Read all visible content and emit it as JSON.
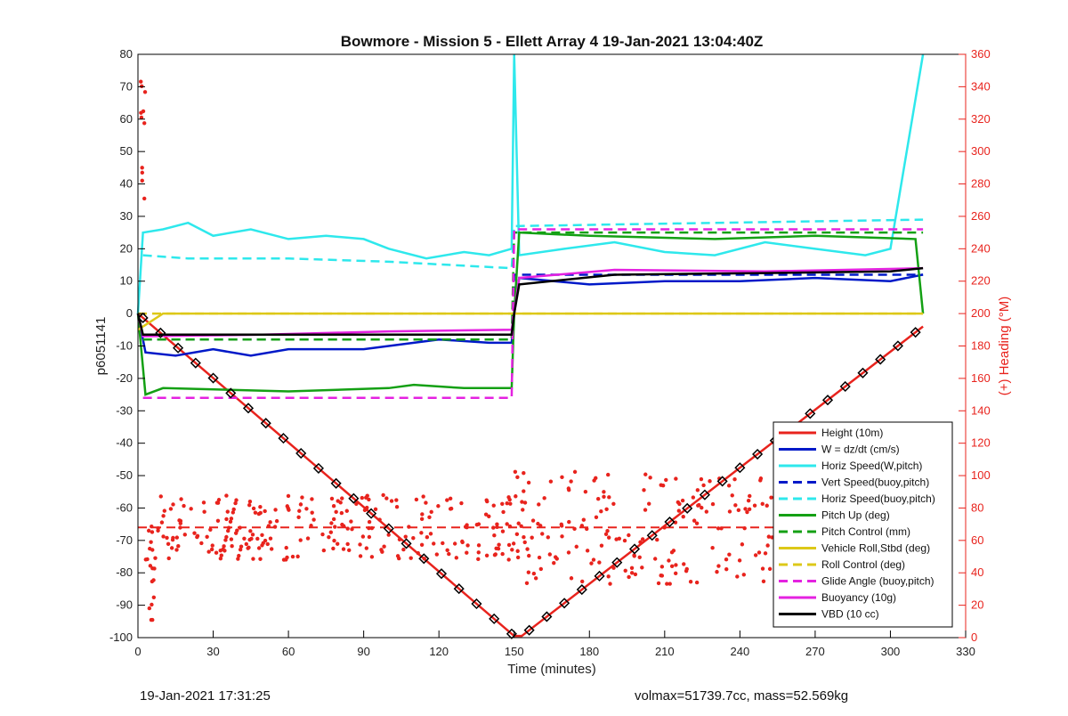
{
  "chart_data": {
    "type": "line",
    "title": "Bowmore - Mission 5 - Ellett Array 4 19-Jan-2021 13:04:40Z",
    "xlabel": "Time (minutes)",
    "ylabel": "p6051141",
    "y2label": "(+) Heading (°M)",
    "xlim": [
      0,
      330
    ],
    "ylim": [
      -100,
      80
    ],
    "y2lim": [
      0,
      360
    ],
    "xticks": [
      0,
      30,
      60,
      90,
      120,
      150,
      180,
      210,
      240,
      270,
      300,
      330
    ],
    "yticks": [
      -100,
      -90,
      -80,
      -70,
      -60,
      -50,
      -40,
      -30,
      -20,
      -10,
      0,
      10,
      20,
      30,
      40,
      50,
      60,
      70,
      80
    ],
    "y2ticks": [
      0,
      20,
      40,
      60,
      80,
      100,
      120,
      140,
      160,
      180,
      200,
      220,
      240,
      260,
      280,
      300,
      320,
      340,
      360
    ],
    "grid": false,
    "legend_position": "bottom-right",
    "series": [
      {
        "name": "Height (10m)",
        "color": "#e8231d",
        "style": "solid",
        "x": [
          0,
          150,
          153,
          313
        ],
        "y": [
          0,
          -99.5,
          -99.5,
          -4
        ]
      },
      {
        "name": "W = dz/dt (cm/s)",
        "color": "#0019c8",
        "style": "solid",
        "x": [
          0,
          3,
          15,
          30,
          45,
          60,
          90,
          110,
          120,
          140,
          149,
          150,
          152,
          180,
          210,
          240,
          270,
          300,
          313
        ],
        "y": [
          0,
          -12,
          -13,
          -11,
          -13,
          -11,
          -11,
          -9,
          -8,
          -9,
          -9,
          0,
          11,
          9,
          10,
          10,
          11,
          10,
          12
        ]
      },
      {
        "name": "Horiz Speed(W,pitch)",
        "color": "#2ee8ec",
        "style": "solid",
        "x": [
          0,
          2,
          10,
          20,
          30,
          45,
          60,
          75,
          90,
          100,
          115,
          130,
          140,
          149,
          150,
          152,
          170,
          190,
          210,
          230,
          250,
          270,
          290,
          300,
          313
        ],
        "y": [
          0,
          25,
          26,
          28,
          24,
          26,
          23,
          24,
          23,
          20,
          17,
          19,
          18,
          20,
          80,
          18,
          20,
          22,
          19,
          18,
          22,
          20,
          18,
          20,
          80
        ]
      },
      {
        "name": "Vert Speed(buoy,pitch)",
        "color": "#0019c8",
        "style": "dashed",
        "x": [
          2,
          149,
          150,
          313
        ],
        "y": [
          -8,
          -8,
          12,
          12
        ]
      },
      {
        "name": "Horiz Speed(buoy,pitch)",
        "color": "#2ee8ec",
        "style": "dashed",
        "x": [
          2,
          20,
          60,
          100,
          149,
          150,
          313
        ],
        "y": [
          18,
          17,
          17,
          16,
          14,
          27,
          29
        ]
      },
      {
        "name": "Pitch Up (deg)",
        "color": "#14a014",
        "style": "solid",
        "x": [
          0,
          3,
          10,
          60,
          100,
          110,
          130,
          149,
          150,
          152,
          180,
          230,
          270,
          310,
          313
        ],
        "y": [
          0,
          -25,
          -23,
          -24,
          -23,
          -22,
          -23,
          -23,
          0,
          25,
          24,
          23,
          24,
          23,
          0
        ]
      },
      {
        "name": "Pitch Control (mm)",
        "color": "#14a014",
        "style": "dashed",
        "x": [
          2,
          149,
          150,
          313
        ],
        "y": [
          -8,
          -8,
          25,
          25
        ]
      },
      {
        "name": "Vehicle Roll,Stbd (deg)",
        "color": "#ddc818",
        "style": "solid",
        "x": [
          0,
          10,
          60,
          100,
          149,
          150,
          200,
          260,
          313
        ],
        "y": [
          -5,
          0,
          0,
          0,
          0,
          0,
          0,
          0,
          0
        ]
      },
      {
        "name": "Roll Control (deg)",
        "color": "#ddc818",
        "style": "dashed",
        "x": [
          0,
          149,
          150,
          313
        ],
        "y": [
          0,
          0,
          0,
          0
        ]
      },
      {
        "name": "Glide Angle (buoy,pitch)",
        "color": "#e422e0",
        "style": "dashed",
        "x": [
          2,
          149,
          150,
          313
        ],
        "y": [
          -26,
          -26,
          26,
          26
        ]
      },
      {
        "name": "Buoyancy (10g)",
        "color": "#e422e0",
        "style": "solid",
        "x": [
          0,
          2,
          50,
          100,
          149,
          150,
          152,
          190,
          250,
          313
        ],
        "y": [
          0,
          -7,
          -6.5,
          -5.5,
          -5,
          0,
          11,
          13.5,
          13,
          14
        ]
      },
      {
        "name": "VBD (10 cc)",
        "color": "#000000",
        "style": "solid",
        "x": [
          0,
          2,
          100,
          149,
          150,
          152,
          190,
          250,
          300,
          313
        ],
        "y": [
          0,
          -6.5,
          -6.5,
          -6.5,
          0,
          9,
          12,
          12.5,
          13,
          14
        ]
      }
    ],
    "heading": {
      "color": "#e8231d",
      "axis": "right",
      "mean": 68,
      "min_x": 0,
      "max_x": 313
    }
  },
  "footer": {
    "left": "19-Jan-2021 17:31:25",
    "right": "volmax=51739.7cc, mass=52.569kg"
  }
}
